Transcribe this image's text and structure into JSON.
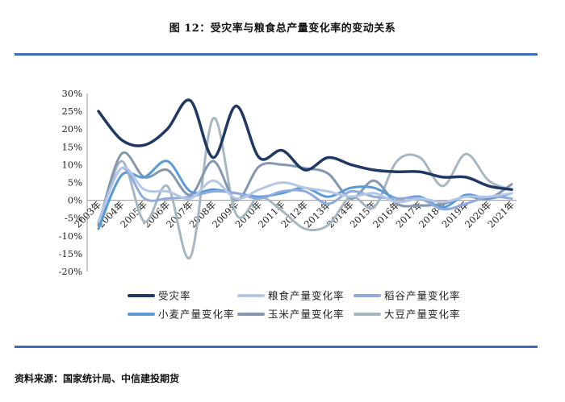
{
  "header": {
    "title": "图 12：受灾率与粮食总产量变化率的变动关系"
  },
  "footer": {
    "source": "资料来源：国家统计局、中信建投期货"
  },
  "chart_data": {
    "type": "line",
    "title": "图 12：受灾率与粮食总产量变化率的变动关系",
    "xlabel": "",
    "ylabel": "",
    "categories": [
      "2003年",
      "2004年",
      "2005年",
      "2006年",
      "2007年",
      "2008年",
      "2009年",
      "2010年",
      "2011年",
      "2012年",
      "2013年",
      "2014年",
      "2015年",
      "2016年",
      "2017年",
      "2018年",
      "2019年",
      "2020年",
      "2021年"
    ],
    "y_ticks": [
      "-20%",
      "-15%",
      "-10%",
      "-5%",
      "0%",
      "5%",
      "10%",
      "15%",
      "20%",
      "25%",
      "30%"
    ],
    "ylim": [
      -20,
      30
    ],
    "legend_position": "bottom",
    "series": [
      {
        "name": "受灾率",
        "color": "#1f3864",
        "width": 3.5,
        "values": [
          25,
          17,
          15.5,
          20,
          28,
          12,
          26.5,
          12,
          14,
          8.5,
          12,
          10,
          8.5,
          8,
          8,
          6.5,
          6.5,
          4,
          3
        ]
      },
      {
        "name": "粮食产量变化率",
        "color": "#b4c7e7",
        "width": 3,
        "values": [
          -6,
          9,
          3,
          2.5,
          0.5,
          5.5,
          0.5,
          3,
          5,
          3.5,
          2.5,
          1,
          2,
          -0.5,
          0.5,
          -0.5,
          1,
          1,
          2
        ]
      },
      {
        "name": "稻谷产量变化率",
        "color": "#8faadc",
        "width": 3,
        "values": [
          -6,
          9,
          0.5,
          0.5,
          1,
          2.5,
          2,
          0.5,
          2.5,
          2.5,
          -1,
          2.5,
          1,
          0.5,
          0.5,
          -2.5,
          -1,
          1,
          0.5
        ]
      },
      {
        "name": "小麦产量变化率",
        "color": "#5b9bd5",
        "width": 3,
        "values": [
          -8,
          7,
          6.5,
          11,
          2.5,
          3,
          2,
          1,
          2,
          3.5,
          1,
          3.5,
          3.5,
          0.5,
          1,
          -2,
          1.5,
          0.5,
          2
        ]
      },
      {
        "name": "玉米产量变化率",
        "color": "#8497b0",
        "width": 3,
        "values": [
          -7,
          13,
          6.5,
          8.5,
          1.5,
          11,
          0,
          9.5,
          10,
          9,
          7.5,
          0.5,
          5.5,
          -1,
          -1.5,
          -1,
          1,
          0.5,
          4.5
        ]
      },
      {
        "name": "大豆产量变化率",
        "color": "#a6b7c4",
        "width": 3,
        "values": [
          -8,
          11,
          -6,
          4,
          -16,
          23,
          -4,
          1,
          -3,
          -8,
          -7,
          1,
          -2,
          11,
          12,
          4,
          13,
          5.5,
          3
        ]
      }
    ]
  }
}
